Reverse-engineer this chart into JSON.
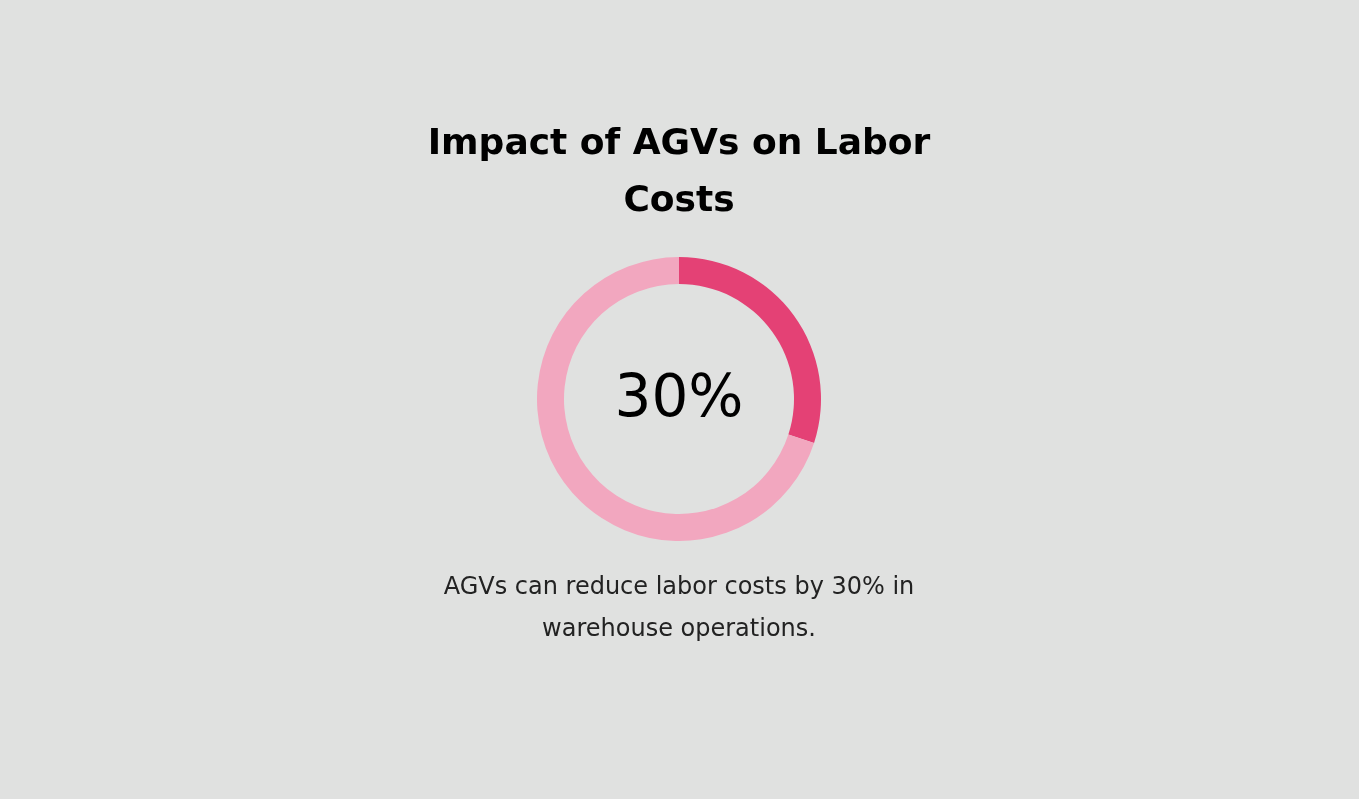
{
  "chart_data": {
    "type": "donut",
    "title": "Impact of AGVs on Labor Costs",
    "categories": [
      null,
      null
    ],
    "values": [
      30,
      70
    ],
    "colors": [
      "#e44175",
      "#f2a7bf"
    ],
    "value_labels": [
      "30%",
      null
    ],
    "annotations": [
      "AGVs can reduce labor costs by 30% in warehouse operations."
    ]
  }
}
